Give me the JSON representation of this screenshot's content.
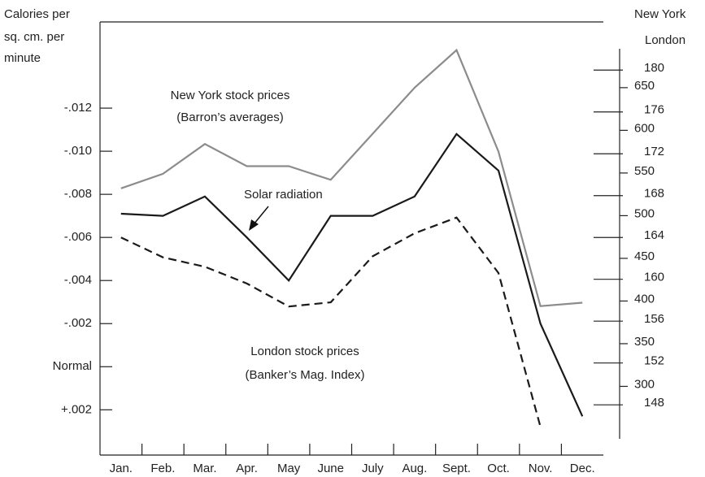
{
  "chart_data": {
    "type": "line",
    "ylabel": [
      "Calories per",
      "sq. cm. per",
      "minute"
    ],
    "y2label": "New York",
    "y3label": "London",
    "annotations": [
      "New York stock prices",
      "(Barron’s averages)",
      "Solar radiation",
      "London stock prices",
      "(Banker’s Mag. Index)"
    ],
    "categories": [
      "Jan.",
      "Feb.",
      "Mar.",
      "Apr.",
      "May",
      "June",
      "July",
      "Aug.",
      "Sept.",
      "Oct.",
      "Nov.",
      "Dec."
    ],
    "ylim": [
      0.0041,
      -0.016
    ],
    "yticks": [
      {
        "value": -0.012,
        "label": "-.012"
      },
      {
        "value": -0.01,
        "label": "-.010"
      },
      {
        "value": -0.008,
        "label": "-.008"
      },
      {
        "value": -0.006,
        "label": "-.006"
      },
      {
        "value": -0.004,
        "label": "-.004"
      },
      {
        "value": -0.002,
        "label": "-.002"
      },
      {
        "value": 0,
        "label": "Normal"
      },
      {
        "value": 0.002,
        "label": "+.002"
      }
    ],
    "y2lim": [
      219.5,
      727
    ],
    "y2ticks": [
      300,
      350,
      400,
      450,
      500,
      550,
      600,
      650
    ],
    "y3lim": [
      143.2,
      184.6
    ],
    "y3ticks": [
      148,
      152,
      156,
      160,
      164,
      168,
      172,
      176,
      180
    ],
    "series": [
      {
        "name": "Solar radiation",
        "color": "#1a1a1a",
        "line_style": "solid",
        "axis": "y",
        "values": [
          -0.0071,
          -0.007,
          -0.0079,
          -0.006,
          -0.004,
          -0.007,
          -0.007,
          -0.0079,
          -0.0108,
          -0.0091,
          -0.002,
          0.0023
        ]
      },
      {
        "name": "New York stock prices",
        "color": "#8c8c8c",
        "line_style": "solid",
        "axis": "y2",
        "values": [
          532,
          549,
          584,
          558,
          558,
          542,
          596,
          650,
          694,
          575,
          394,
          398
        ]
      },
      {
        "name": "London stock prices",
        "color": "#1a1a1a",
        "line_style": "dashed",
        "axis": "y3",
        "values": [
          164.0,
          162.1,
          161.2,
          159.6,
          157.4,
          157.8,
          162.2,
          164.4,
          165.9,
          160.6,
          145.9,
          null
        ]
      }
    ]
  }
}
